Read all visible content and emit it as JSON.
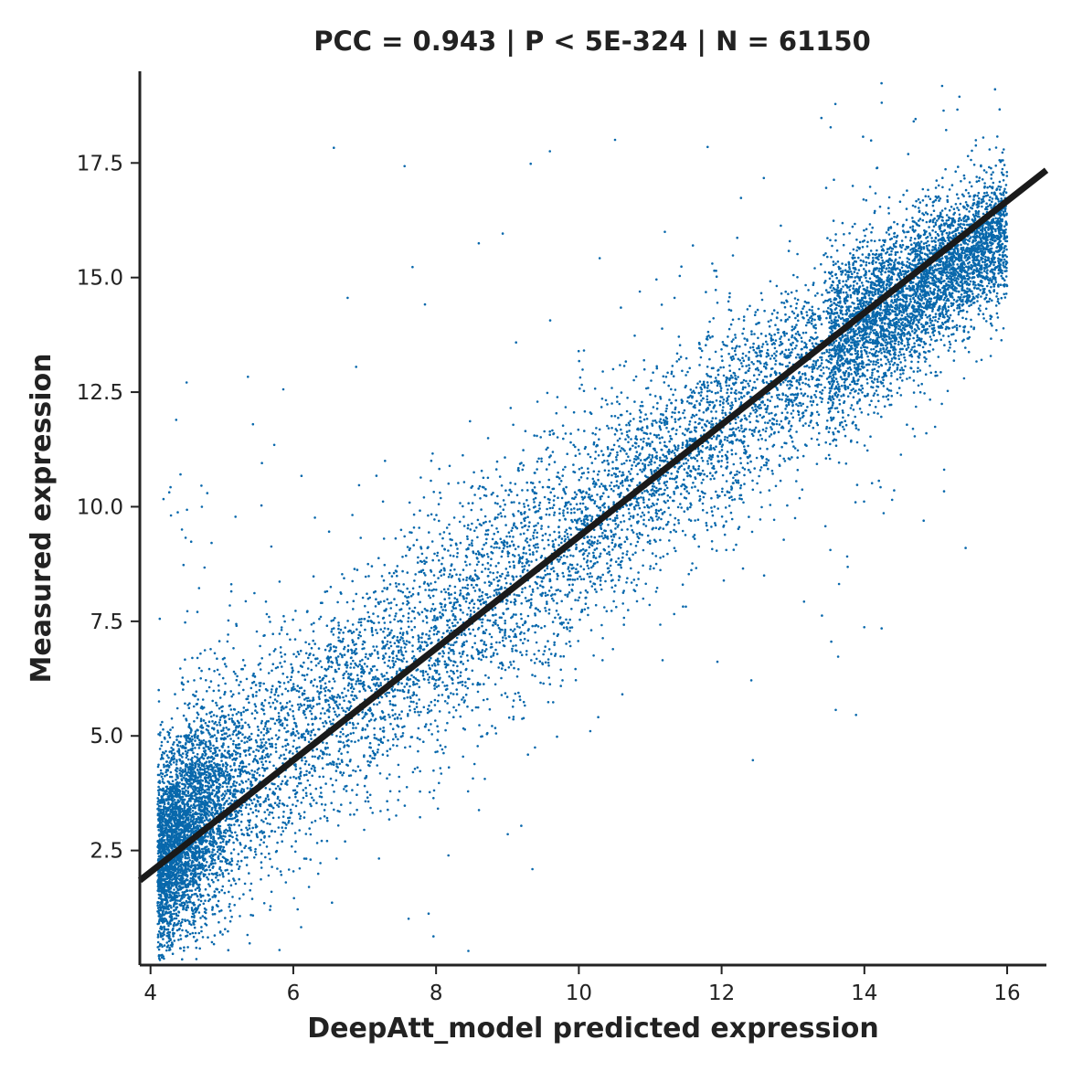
{
  "chart_data": {
    "type": "scatter",
    "title": "PCC =  0.943 | P <  5E-324 | N = 61150",
    "xlabel": "DeepAtt_model predicted expression",
    "ylabel": "Measured expression",
    "xlim": [
      3.85,
      16.55
    ],
    "ylim": [
      0.0,
      19.5
    ],
    "x_ticks": [
      4,
      6,
      8,
      10,
      12,
      14,
      16
    ],
    "x_tick_labels": [
      "4",
      "6",
      "8",
      "10",
      "12",
      "14",
      "16"
    ],
    "y_ticks": [
      2.5,
      5.0,
      7.5,
      10.0,
      12.5,
      15.0,
      17.5
    ],
    "y_tick_labels": [
      "2.5",
      "5.0",
      "7.5",
      "10.0",
      "12.5",
      "15.0",
      "17.5"
    ],
    "grid": false,
    "point_color": "#0868ac",
    "line_color": "#1a1a1a",
    "regression_line": {
      "slope": 1.22,
      "intercept": -2.85
    },
    "point_count": 61150,
    "density_trend": [
      {
        "x": 4.0,
        "y_center": 2.1,
        "y_spread": 1.0
      },
      {
        "x": 4.5,
        "y_center": 2.9,
        "y_spread": 1.1
      },
      {
        "x": 5.0,
        "y_center": 3.7,
        "y_spread": 1.2
      },
      {
        "x": 6.0,
        "y_center": 4.9,
        "y_spread": 1.3
      },
      {
        "x": 7.0,
        "y_center": 6.1,
        "y_spread": 1.3
      },
      {
        "x": 8.0,
        "y_center": 7.2,
        "y_spread": 1.3
      },
      {
        "x": 9.0,
        "y_center": 8.4,
        "y_spread": 1.3
      },
      {
        "x": 10.0,
        "y_center": 9.5,
        "y_spread": 1.2
      },
      {
        "x": 11.0,
        "y_center": 10.7,
        "y_spread": 1.1
      },
      {
        "x": 12.0,
        "y_center": 11.8,
        "y_spread": 1.1
      },
      {
        "x": 13.0,
        "y_center": 12.9,
        "y_spread": 1.0
      },
      {
        "x": 14.0,
        "y_center": 14.0,
        "y_spread": 0.9
      },
      {
        "x": 15.0,
        "y_center": 15.0,
        "y_spread": 0.8
      },
      {
        "x": 16.0,
        "y_center": 16.0,
        "y_spread": 0.7
      }
    ]
  }
}
